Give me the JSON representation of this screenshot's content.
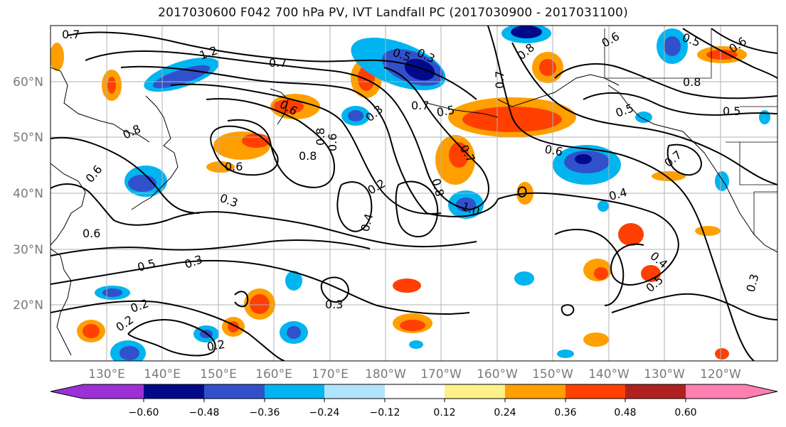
{
  "title": "2017030600 F042 700 hPa PV, IVT Landfall PC (2017030900 - 2017031100)",
  "map": {
    "lat_labels": [
      "60°N",
      "50°N",
      "40°N",
      "30°N",
      "20°N"
    ],
    "lon_labels": [
      "130°E",
      "140°E",
      "150°E",
      "160°E",
      "170°E",
      "180°W",
      "170°W",
      "160°W",
      "150°W",
      "140°W",
      "130°W",
      "120°W"
    ],
    "contour_labels": [
      "0.7",
      "1.2",
      "0.7",
      "0.5",
      "0.3",
      "0.7",
      "0.8",
      "0.6",
      "0.5",
      "0.8",
      "0.3",
      "0.8",
      "0.6",
      "0.6",
      "0.3",
      "0.8",
      "0.6",
      "0.2",
      "0.4",
      "1.0",
      "0.7",
      "0.6",
      "0.4",
      "0.6",
      "0.5",
      "0.3",
      "0.2",
      "0.2",
      "0.2",
      "0.3",
      "0.4",
      "0.5",
      "0.5",
      "0.3",
      "0.7",
      "0.7",
      "0.5",
      "0.8",
      "0.5",
      "0.6",
      "0.8",
      "0.6"
    ],
    "land_color": "#000000",
    "grid_color": "#b0b0b0"
  },
  "colorbar": {
    "ticks": [
      "−0.60",
      "−0.48",
      "−0.36",
      "−0.24",
      "−0.12",
      "0.12",
      "0.24",
      "0.36",
      "0.48",
      "0.60"
    ],
    "colors": [
      "#9c2fd6",
      "#000a8a",
      "#3050cc",
      "#00b4f0",
      "#b0e4ff",
      "#ffffff",
      "#fff08a",
      "#ffa000",
      "#ff4000",
      "#b02020",
      "#ff80b0"
    ]
  }
}
